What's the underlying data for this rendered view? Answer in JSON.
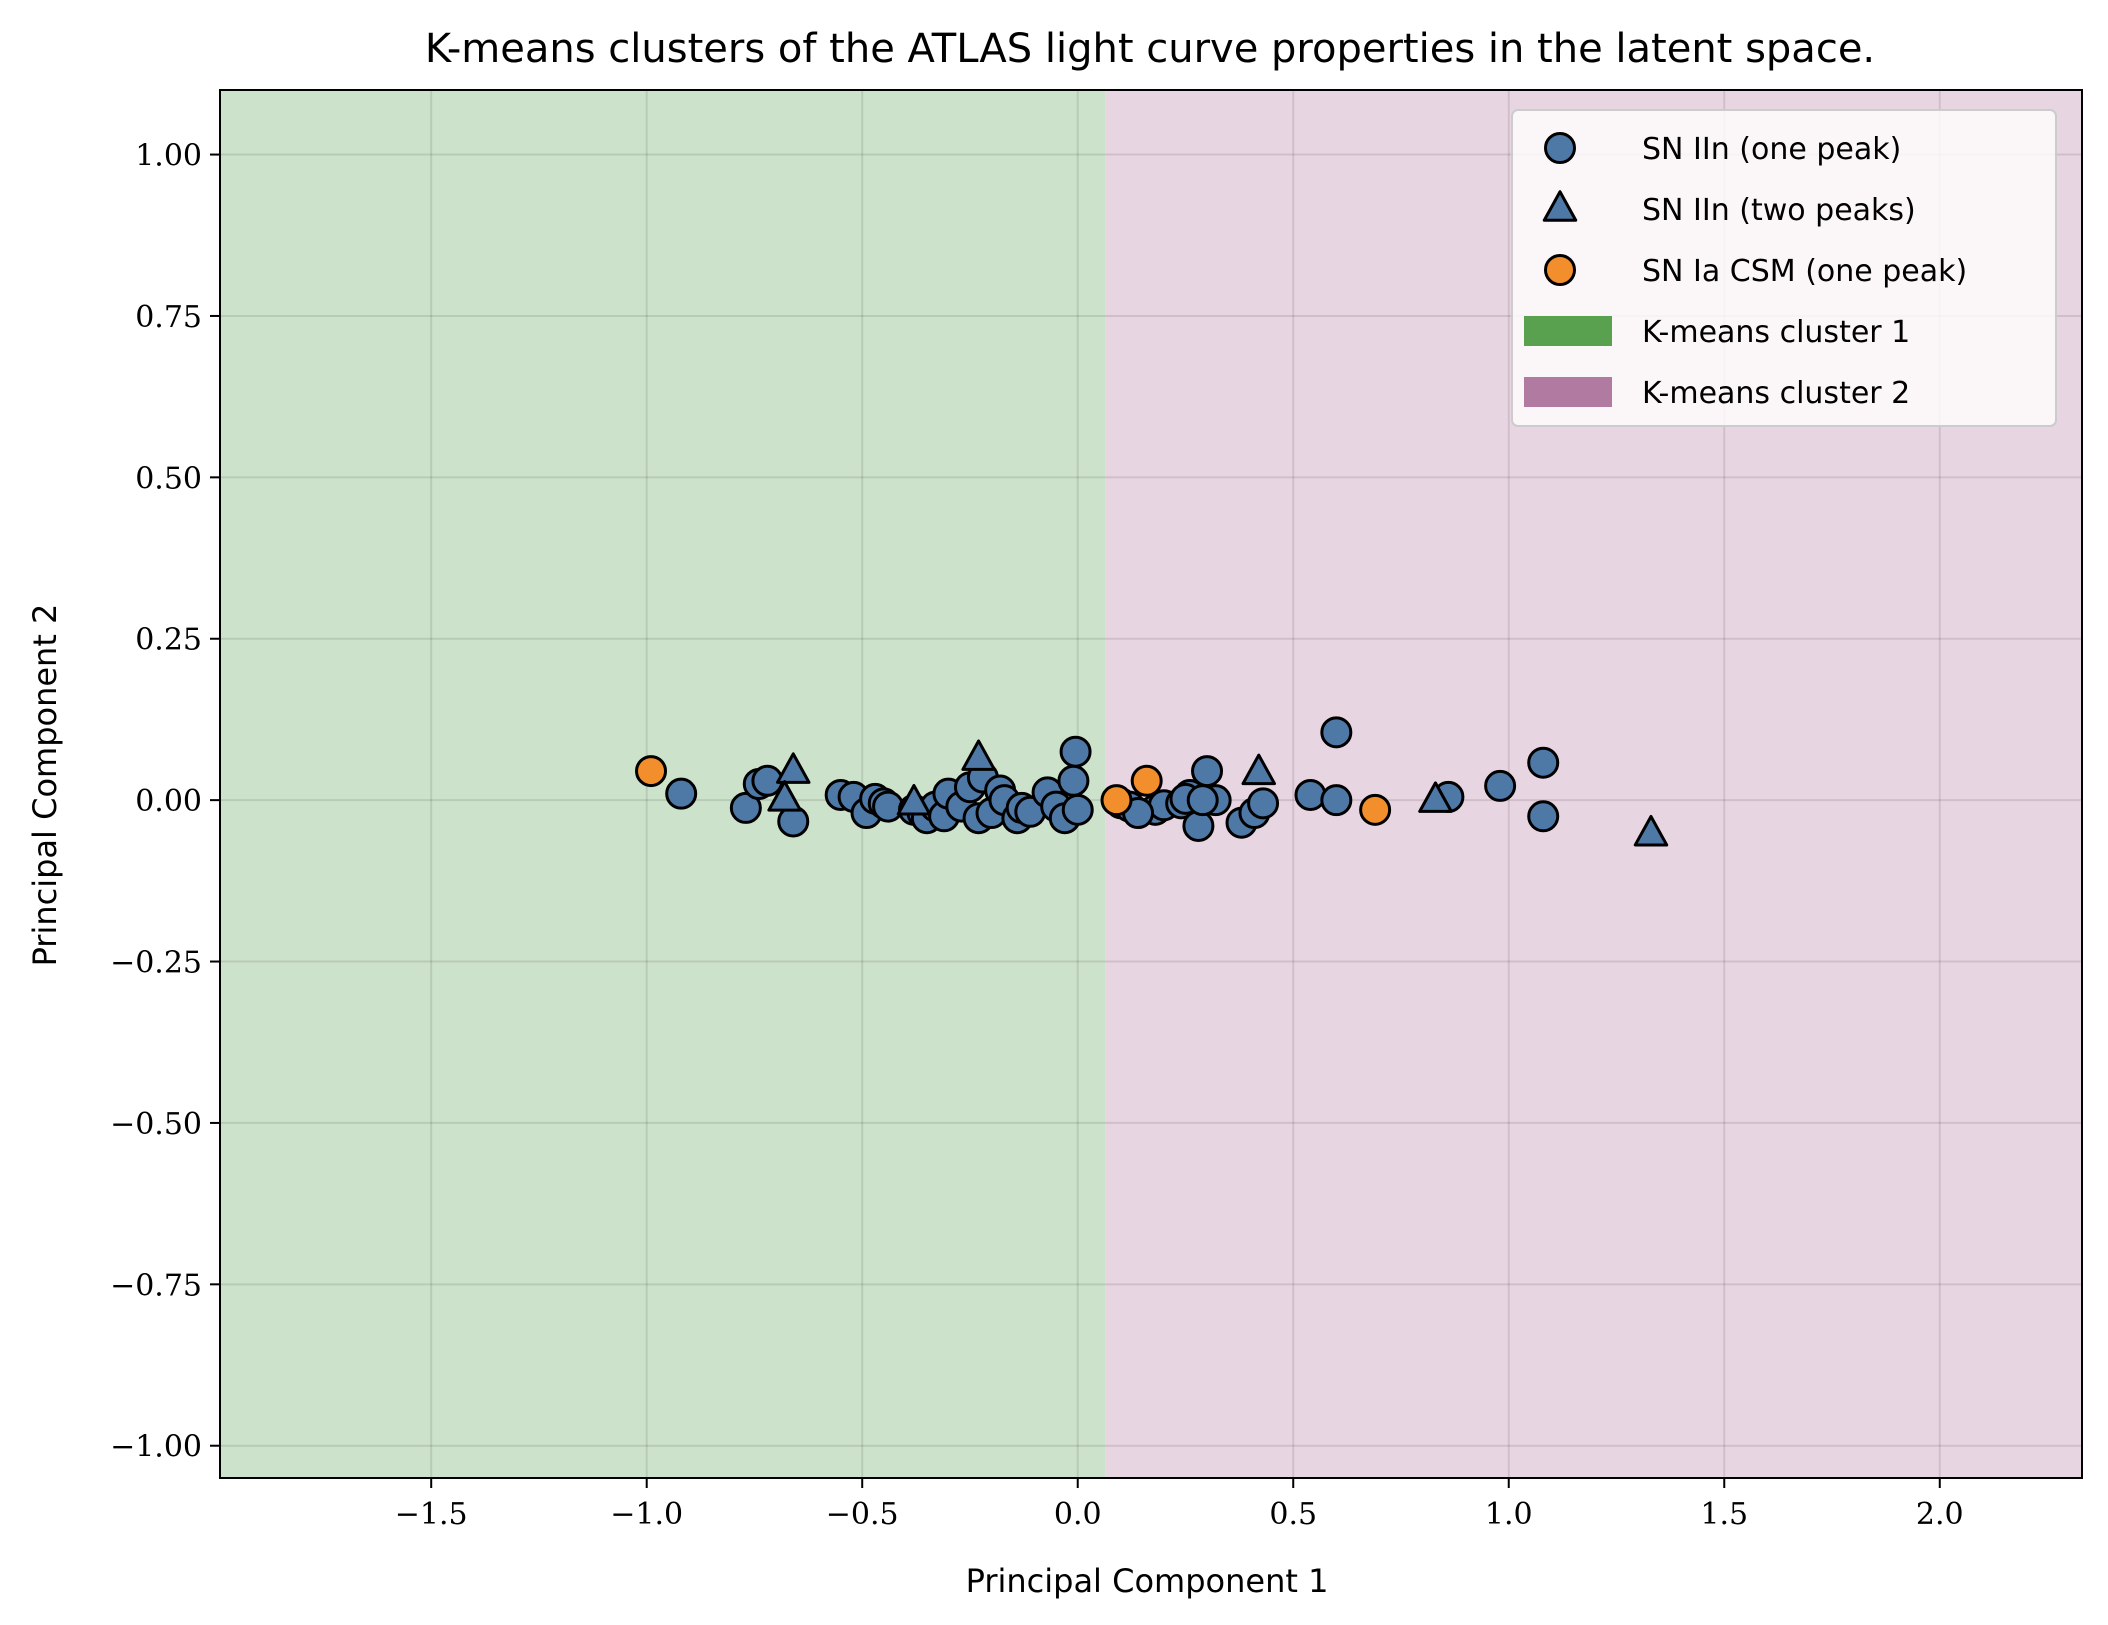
{
  "chart_data": {
    "type": "scatter",
    "title": "K-means clusters of the ATLAS light curve properties in the latent space.",
    "xlabel": "Principal Component 1",
    "ylabel": "Principal Component 2",
    "xlim": [
      -1.99,
      2.33
    ],
    "ylim": [
      -1.05,
      1.1
    ],
    "xticks": [
      -1.5,
      -1.0,
      -0.5,
      0.0,
      0.5,
      1.0,
      1.5,
      2.0
    ],
    "xtick_labels": [
      "−1.5",
      "−1.0",
      "−0.5",
      "0.0",
      "0.5",
      "1.0",
      "1.5",
      "2.0"
    ],
    "yticks": [
      -1.0,
      -0.75,
      -0.5,
      -0.25,
      0.0,
      0.25,
      0.5,
      0.75,
      1.0
    ],
    "ytick_labels": [
      "−1.00",
      "−0.75",
      "−0.50",
      "−0.25",
      "0.00",
      "0.25",
      "0.50",
      "0.75",
      "1.00"
    ],
    "grid": true,
    "legend_position": "top-right",
    "regions": [
      {
        "name": "K-means cluster 1",
        "x_from": -1.99,
        "x_to": 0.065,
        "fill": "#cde2cb",
        "legend_color": "#59a14f"
      },
      {
        "name": "K-means cluster 2",
        "x_from": 0.065,
        "x_to": 2.33,
        "fill": "#e8d5e2",
        "legend_color": "#b07aa1"
      }
    ],
    "series": [
      {
        "name": "SN IIn (one peak)",
        "marker": "circle",
        "color": "#4e79a7",
        "points": [
          [
            -0.92,
            0.01
          ],
          [
            -0.77,
            -0.012
          ],
          [
            -0.74,
            0.025
          ],
          [
            -0.72,
            0.03
          ],
          [
            -0.66,
            -0.033
          ],
          [
            -0.55,
            0.008
          ],
          [
            -0.52,
            0.005
          ],
          [
            -0.49,
            -0.02
          ],
          [
            -0.47,
            0.002
          ],
          [
            -0.45,
            -0.005
          ],
          [
            -0.44,
            -0.01
          ],
          [
            -0.38,
            -0.015
          ],
          [
            -0.36,
            -0.02
          ],
          [
            -0.35,
            -0.028
          ],
          [
            -0.33,
            -0.01
          ],
          [
            -0.31,
            -0.025
          ],
          [
            -0.3,
            0.01
          ],
          [
            -0.27,
            -0.01
          ],
          [
            -0.25,
            0.02
          ],
          [
            -0.23,
            -0.028
          ],
          [
            -0.22,
            0.035
          ],
          [
            -0.2,
            -0.02
          ],
          [
            -0.18,
            0.015
          ],
          [
            -0.17,
            0.0
          ],
          [
            -0.14,
            -0.028
          ],
          [
            -0.13,
            -0.012
          ],
          [
            -0.11,
            -0.018
          ],
          [
            -0.07,
            0.012
          ],
          [
            -0.05,
            -0.01
          ],
          [
            -0.03,
            -0.028
          ],
          [
            -0.01,
            0.03
          ],
          [
            -0.005,
            0.075
          ],
          [
            0.0,
            -0.015
          ],
          [
            0.1,
            -0.005
          ],
          [
            0.12,
            -0.01
          ],
          [
            0.18,
            -0.015
          ],
          [
            0.2,
            -0.008
          ],
          [
            0.24,
            -0.005
          ],
          [
            0.26,
            0.008
          ],
          [
            0.28,
            -0.04
          ],
          [
            0.3,
            0.045
          ],
          [
            0.32,
            0.0
          ],
          [
            0.38,
            -0.035
          ],
          [
            0.41,
            -0.02
          ],
          [
            0.43,
            -0.005
          ],
          [
            0.54,
            0.008
          ],
          [
            0.6,
            0.105
          ],
          [
            0.6,
            0.0
          ],
          [
            0.86,
            0.005
          ],
          [
            0.98,
            0.022
          ],
          [
            1.08,
            0.058
          ],
          [
            1.08,
            -0.025
          ],
          [
            0.25,
            0.002
          ],
          [
            0.29,
            0.0
          ],
          [
            0.14,
            -0.02
          ]
        ]
      },
      {
        "name": "SN IIn (two peaks)",
        "marker": "triangle",
        "color": "#4e79a7",
        "points": [
          [
            -0.66,
            0.045
          ],
          [
            -0.68,
            0.002
          ],
          [
            -0.38,
            -0.004
          ],
          [
            -0.23,
            0.065
          ],
          [
            0.42,
            0.043
          ],
          [
            0.83,
            0.0
          ],
          [
            1.33,
            -0.052
          ]
        ]
      },
      {
        "name": "SN Ia CSM (one peak)",
        "marker": "circle",
        "color": "#f28e2b",
        "points": [
          [
            -0.99,
            0.045
          ],
          [
            0.09,
            0.0
          ],
          [
            0.16,
            0.03
          ],
          [
            0.69,
            -0.015
          ]
        ]
      }
    ]
  }
}
